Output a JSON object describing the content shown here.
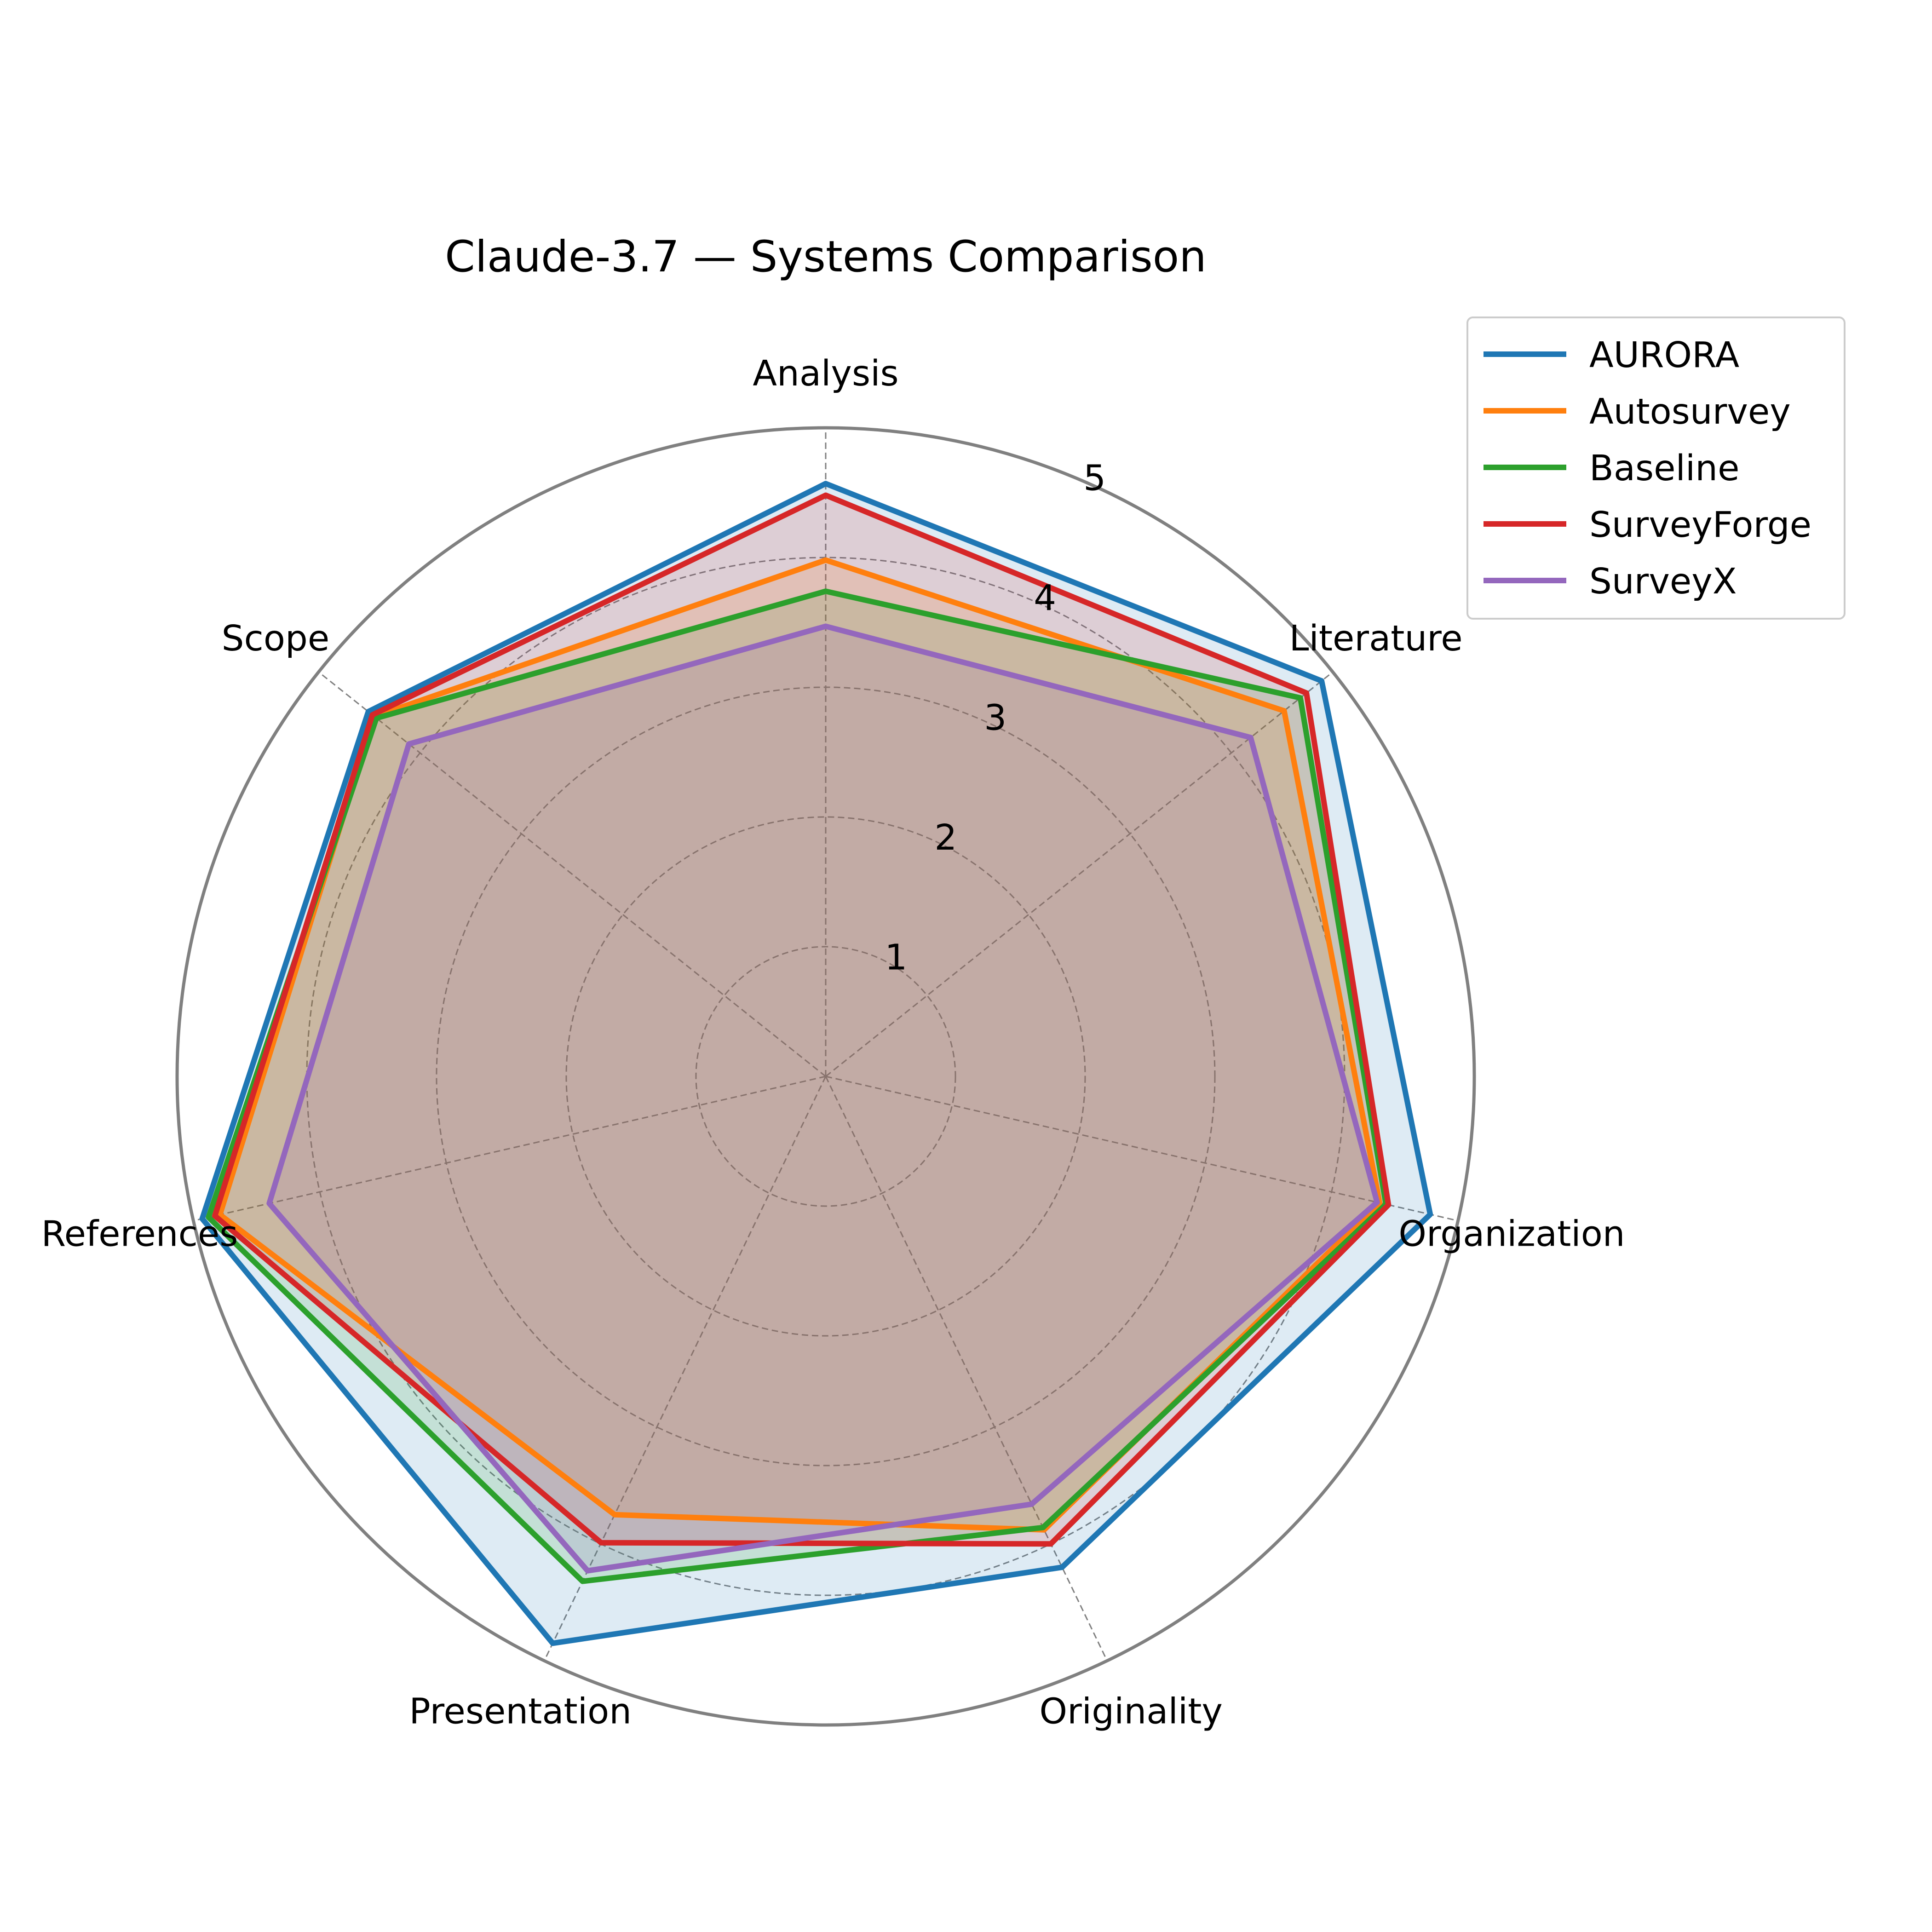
{
  "chart_data": {
    "type": "radar",
    "title": "Claude-3.7 — Systems Comparison",
    "axes": [
      "Analysis",
      "Literature",
      "Organization",
      "Originality",
      "Presentation",
      "References",
      "Scope"
    ],
    "rlim": [
      0,
      5
    ],
    "rticks": [
      1,
      2,
      3,
      4,
      5
    ],
    "rtick_labels": [
      "1",
      "2",
      "3",
      "4",
      "5"
    ],
    "grid": true,
    "legend_position": "top-right",
    "series": [
      {
        "name": "AURORA",
        "color": "#1f77b4",
        "values": [
          4.57,
          4.89,
          4.78,
          4.2,
          4.85,
          4.93,
          4.51
        ]
      },
      {
        "name": "Autosurvey",
        "color": "#ff7f0e",
        "values": [
          3.98,
          4.52,
          4.38,
          3.88,
          3.75,
          4.79,
          4.45
        ]
      },
      {
        "name": "Baseline",
        "color": "#2ca02c",
        "values": [
          3.74,
          4.68,
          4.43,
          3.86,
          4.32,
          4.88,
          4.43
        ]
      },
      {
        "name": "SurveyForge",
        "color": "#d62728",
        "values": [
          4.48,
          4.74,
          4.45,
          4.0,
          3.99,
          4.83,
          4.47
        ]
      },
      {
        "name": "SurveyX",
        "color": "#9467bd",
        "values": [
          3.47,
          4.19,
          4.36,
          3.66,
          4.23,
          4.4,
          4.11
        ]
      }
    ]
  }
}
